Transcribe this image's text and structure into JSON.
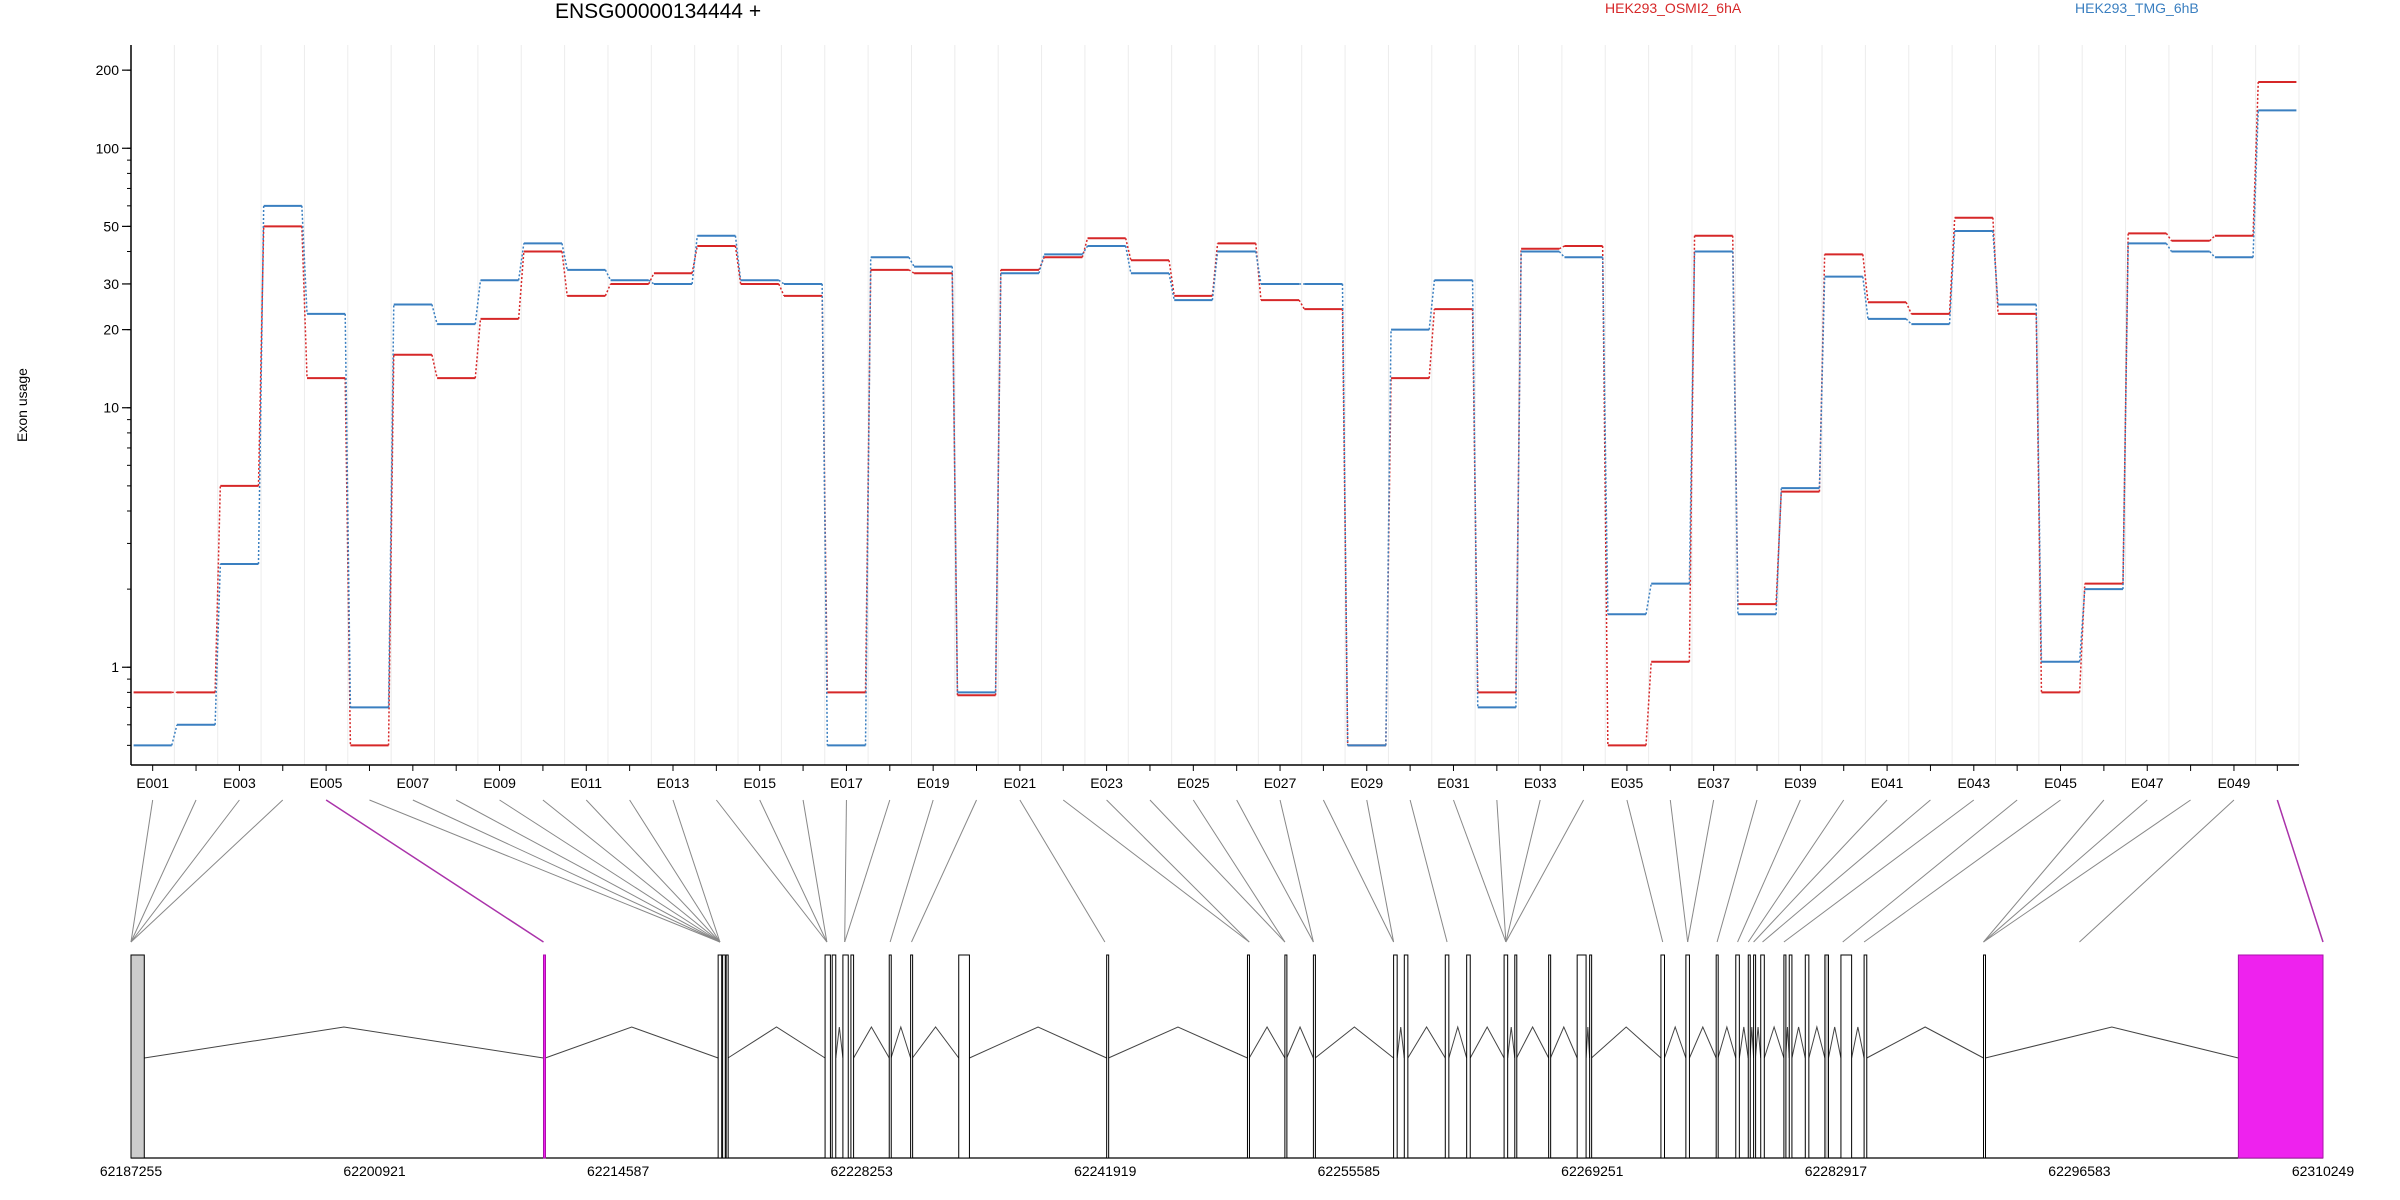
{
  "header": {
    "title": "ENSG00000134444 +",
    "legend": [
      {
        "label": "HEK293_OSMI2_6hA",
        "color": "#d62728"
      },
      {
        "label": "HEK293_TMG_6hB",
        "color": "#3a7fc0"
      }
    ]
  },
  "chart_data": {
    "type": "line",
    "title": "ENSG00000134444 +",
    "xlabel": "",
    "ylabel": "Exon usage",
    "yscale": "log",
    "ylim": [
      0.42,
      250
    ],
    "yticks": [
      1,
      10,
      20,
      30,
      50,
      100,
      200
    ],
    "grid": "vertical",
    "legend_placement": "top",
    "categories": [
      "E001",
      "E002",
      "E003",
      "E004",
      "E005",
      "E006",
      "E007",
      "E008",
      "E009",
      "E010",
      "E011",
      "E012",
      "E013",
      "E014",
      "E015",
      "E016",
      "E017",
      "E018",
      "E019",
      "E020",
      "E021",
      "E022",
      "E023",
      "E024",
      "E025",
      "E026",
      "E027",
      "E028",
      "E029",
      "E030",
      "E031",
      "E032",
      "E033",
      "E034",
      "E035",
      "E036",
      "E037",
      "E038",
      "E039",
      "E040",
      "E041",
      "E042",
      "E043",
      "E044",
      "E045",
      "E046",
      "E047",
      "E048",
      "E049",
      "E050"
    ],
    "x_tick_labels": [
      "E001",
      "E003",
      "E005",
      "E007",
      "E009",
      "E011",
      "E013",
      "E015",
      "E017",
      "E019",
      "E021",
      "E023",
      "E025",
      "E027",
      "E029",
      "E031",
      "E033",
      "E035",
      "E037",
      "E039",
      "E041",
      "E043",
      "E045",
      "E047",
      "E049"
    ],
    "series": [
      {
        "name": "HEK293_OSMI2_6hA",
        "color": "#d62728",
        "values": [
          0.8,
          0.8,
          5.0,
          50,
          13,
          0.5,
          16,
          13,
          22,
          40,
          27,
          30,
          33,
          42,
          30,
          27,
          0.8,
          34,
          33,
          0.78,
          34,
          38,
          45,
          37,
          27,
          43,
          26,
          24,
          0.5,
          13,
          24,
          0.8,
          41,
          42,
          0.5,
          1.05,
          46,
          1.75,
          4.75,
          39,
          25.5,
          23,
          54,
          23,
          0.8,
          2.1,
          47,
          44,
          46,
          180
        ]
      },
      {
        "name": "HEK293_TMG_6hB",
        "color": "#3a7fc0",
        "values": [
          0.5,
          0.6,
          2.5,
          60,
          23,
          0.7,
          25,
          21,
          31,
          43,
          34,
          31,
          30,
          46,
          31,
          30,
          0.5,
          38,
          35,
          0.8,
          33,
          39,
          42,
          33,
          26,
          40,
          30,
          30,
          0.5,
          20,
          31,
          0.7,
          40,
          38,
          1.6,
          2.1,
          40,
          1.6,
          4.9,
          32,
          22,
          21,
          48,
          25,
          1.05,
          2.0,
          43,
          40,
          38,
          140
        ]
      }
    ],
    "genomic_axis": {
      "labels": [
        "62187255",
        "62200921",
        "62214587",
        "62228253",
        "62241919",
        "62255585",
        "62269251",
        "62282917",
        "62296583",
        "62310249"
      ],
      "range": [
        62187255,
        62310249
      ]
    },
    "highlighted_exons": [
      "E005",
      "E050"
    ],
    "highlight_color": "#ee22ee"
  }
}
